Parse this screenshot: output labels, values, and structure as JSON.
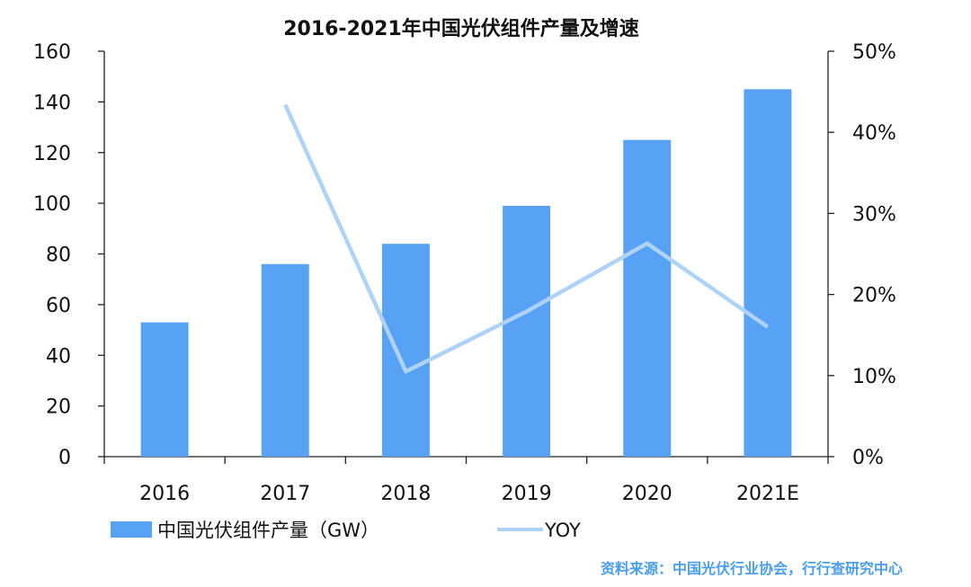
{
  "chart_data": {
    "type": "bar",
    "title": "2016-2021年中国光伏组件产量及增速",
    "categories": [
      "2016",
      "2017",
      "2018",
      "2019",
      "2020",
      "2021E"
    ],
    "series": [
      {
        "name": "中国光伏组件产量（GW）",
        "type": "bar",
        "axis": "left",
        "values": [
          53,
          76,
          84,
          99,
          125,
          145
        ]
      },
      {
        "name": "YOY",
        "type": "line",
        "axis": "right",
        "values": [
          null,
          43.4,
          10.5,
          17.9,
          26.3,
          16.0
        ]
      }
    ],
    "y_left": {
      "range": [
        0,
        160
      ],
      "ticks": [
        "0",
        "20",
        "40",
        "60",
        "80",
        "100",
        "120",
        "140",
        "160"
      ]
    },
    "y_right": {
      "range": [
        0,
        50
      ],
      "ticks": [
        "0%",
        "10%",
        "20%",
        "30%",
        "40%",
        "50%"
      ]
    },
    "xlabel": "",
    "ylabel": "",
    "legend_position": "bottom",
    "grid": false,
    "colors": {
      "bar": "#58A2F5",
      "line": "#AED3F6",
      "axis": "#222222",
      "source": "#4A9DF0"
    }
  },
  "source_note": "资料来源：中国光伏行业协会，行行查研究中心"
}
